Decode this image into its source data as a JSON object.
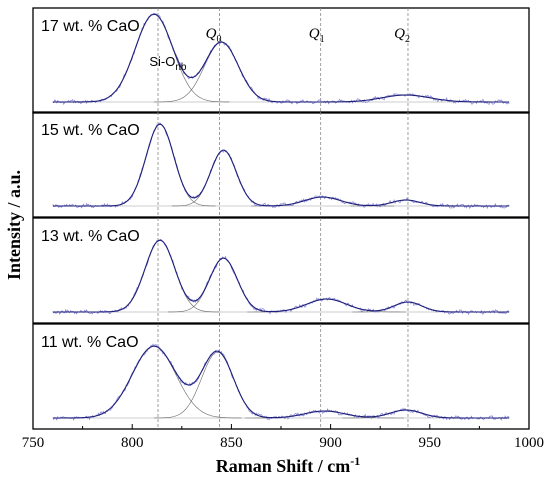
{
  "chart_data": {
    "type": "line",
    "xlabel": "Raman Shift / cm",
    "xlabel_sup": "-1",
    "ylabel": "Intensity / a.u.",
    "xlim": [
      750,
      1000
    ],
    "xticks": [
      750,
      800,
      850,
      900,
      950,
      1000
    ],
    "reference_lines": [
      813,
      844,
      895,
      939
    ],
    "peak_annotations": [
      {
        "text": "Si-O",
        "sub": "nb",
        "x": 818
      },
      {
        "text": "Q",
        "sub": "0",
        "x": 841
      },
      {
        "text": "Q",
        "sub": "1",
        "x": 893
      },
      {
        "text": "Q",
        "sub": "2",
        "x": 936
      }
    ],
    "panels": [
      {
        "label": "17 wt. % CaO",
        "peaks": [
          {
            "center": 811,
            "height": 0.88,
            "sigma": 9.5
          },
          {
            "center": 845,
            "height": 0.6,
            "sigma": 8.5
          },
          {
            "center": 896,
            "height": 0.0,
            "sigma": 10
          },
          {
            "center": 938,
            "height": 0.07,
            "sigma": 12
          }
        ]
      },
      {
        "label": "15 wt. % CaO",
        "peaks": [
          {
            "center": 814,
            "height": 0.82,
            "sigma": 7
          },
          {
            "center": 846,
            "height": 0.56,
            "sigma": 6.5
          },
          {
            "center": 896,
            "height": 0.09,
            "sigma": 9
          },
          {
            "center": 938,
            "height": 0.06,
            "sigma": 7
          }
        ]
      },
      {
        "label": "13 wt. % CaO",
        "peaks": [
          {
            "center": 814,
            "height": 0.72,
            "sigma": 7.5
          },
          {
            "center": 846,
            "height": 0.54,
            "sigma": 7
          },
          {
            "center": 898,
            "height": 0.13,
            "sigma": 10
          },
          {
            "center": 939,
            "height": 0.1,
            "sigma": 7
          }
        ]
      },
      {
        "label": "11 wt. % CaO",
        "peaks": [
          {
            "center": 811,
            "height": 0.72,
            "sigma": 11
          },
          {
            "center": 843,
            "height": 0.66,
            "sigma": 8
          },
          {
            "center": 897,
            "height": 0.07,
            "sigma": 10
          },
          {
            "center": 938,
            "height": 0.08,
            "sigma": 8
          }
        ]
      }
    ]
  }
}
